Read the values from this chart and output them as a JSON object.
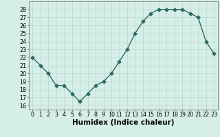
{
  "x": [
    0,
    1,
    2,
    3,
    4,
    5,
    6,
    7,
    8,
    9,
    10,
    11,
    12,
    13,
    14,
    15,
    16,
    17,
    18,
    19,
    20,
    21,
    22,
    23
  ],
  "y": [
    22,
    21,
    20,
    18.5,
    18.5,
    17.5,
    16.5,
    17.5,
    18.5,
    19,
    20,
    21.5,
    23,
    25,
    26.5,
    27.5,
    28,
    28,
    28,
    28,
    27.5,
    27,
    24,
    22.5
  ],
  "line_color": "#2e6b5e",
  "marker": "D",
  "marker_size": 2.5,
  "bg_color": "#d5eee8",
  "grid_color": "#b8d8cf",
  "xlabel": "Humidex (Indice chaleur)",
  "ylim": [
    15.5,
    29
  ],
  "xlim": [
    -0.5,
    23.5
  ],
  "yticks": [
    16,
    17,
    18,
    19,
    20,
    21,
    22,
    23,
    24,
    25,
    26,
    27,
    28
  ],
  "xticks": [
    0,
    1,
    2,
    3,
    4,
    5,
    6,
    7,
    8,
    9,
    10,
    11,
    12,
    13,
    14,
    15,
    16,
    17,
    18,
    19,
    20,
    21,
    22,
    23
  ],
  "tick_label_fontsize": 5.8,
  "xlabel_fontsize": 7.5,
  "line_width": 1.0
}
